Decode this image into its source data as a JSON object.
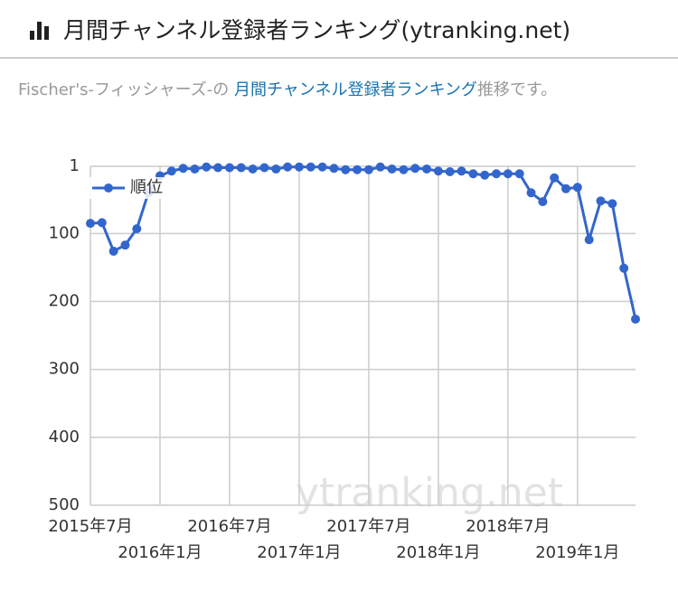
{
  "header": {
    "title": "月間チャンネル登録者ランキング(ytranking.net)"
  },
  "description": {
    "before": "Fischer's-フィッシャーズ-の ",
    "link": "月間チャンネル登録者ランキング",
    "after": "推移です。"
  },
  "chart_data": {
    "type": "line",
    "reversed": true,
    "grid": true,
    "legend": "top-left",
    "watermark": "ytranking.net",
    "categories": [
      "2015年7月",
      null,
      null,
      null,
      null,
      null,
      "2016年1月",
      null,
      null,
      null,
      null,
      null,
      "2016年7月",
      null,
      null,
      null,
      null,
      null,
      "2017年1月",
      null,
      null,
      null,
      null,
      null,
      "2017年7月",
      null,
      null,
      null,
      null,
      null,
      "2018年1月",
      null,
      null,
      null,
      null,
      null,
      "2018年7月",
      null,
      null,
      null,
      null,
      null,
      "2019年1月",
      null,
      null,
      null,
      null,
      null
    ],
    "series": [
      {
        "name": "順位",
        "color": "#3366cc",
        "values": [
          85,
          84,
          126,
          117,
          93,
          40,
          15,
          8,
          4,
          5,
          2,
          3,
          3,
          3,
          5,
          3,
          5,
          2,
          2,
          2,
          2,
          4,
          6,
          6,
          6,
          2,
          5,
          6,
          4,
          5,
          8,
          9,
          8,
          12,
          14,
          12,
          12,
          12,
          40,
          53,
          18,
          34,
          32,
          109,
          52,
          56,
          151,
          226
        ]
      }
    ],
    "ylim": [
      1,
      500
    ],
    "yticks": [
      1,
      100,
      200,
      300,
      400,
      500
    ]
  }
}
